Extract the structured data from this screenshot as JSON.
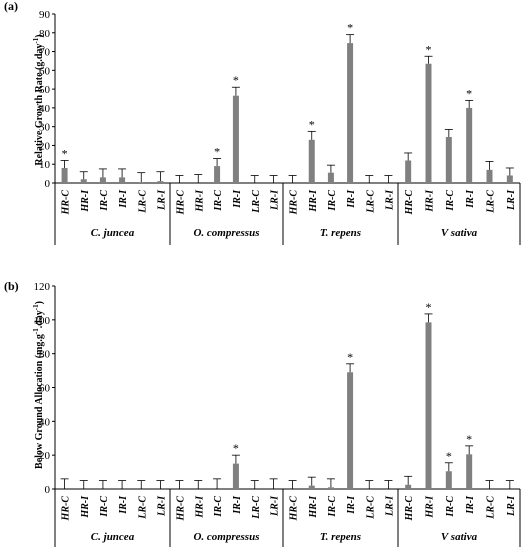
{
  "chart_data": [
    {
      "panel_label": "(a)",
      "type": "bar",
      "ylabel_main": "Relative Growth Rate (g.day",
      "ylabel_sup": "-1",
      "ylabel_end": ")",
      "ylim": [
        0,
        90
      ],
      "yticks": [
        0,
        10,
        20,
        30,
        40,
        50,
        60,
        70,
        80,
        90
      ],
      "grid": false,
      "categories": [
        "HR-C",
        "HR-I",
        "IR-C",
        "IR-I",
        "LR-C",
        "LR-I"
      ],
      "groups": [
        {
          "name": "C. juncea",
          "values": [
            8,
            2,
            3,
            3,
            0.5,
            1
          ],
          "errors": [
            4,
            4,
            4.5,
            4.5,
            5,
            5
          ],
          "sig": [
            true,
            false,
            false,
            false,
            false,
            false
          ]
        },
        {
          "name": "O. compressus",
          "values": [
            0,
            0,
            9,
            46.5,
            0,
            0
          ],
          "errors": [
            4,
            4.5,
            4,
            4.5,
            4,
            4
          ],
          "sig": [
            false,
            false,
            true,
            true,
            false,
            false
          ]
        },
        {
          "name": "T. repens",
          "values": [
            0,
            23,
            5.5,
            74.5,
            0,
            0
          ],
          "errors": [
            4,
            4.5,
            4,
            4.5,
            4,
            4
          ],
          "sig": [
            false,
            true,
            false,
            true,
            false,
            false
          ]
        },
        {
          "name": "V sativa",
          "values": [
            12,
            63.5,
            24.5,
            40,
            7,
            4
          ],
          "errors": [
            4,
            4,
            4,
            4,
            4.5,
            4
          ],
          "sig": [
            false,
            true,
            false,
            true,
            false,
            false
          ]
        }
      ],
      "sig_marker": "*"
    },
    {
      "panel_label": "(b)",
      "type": "bar",
      "ylabel_main": "Below Ground Allocation (mg.g",
      "ylabel_sup": "-1",
      "ylabel_mid": ".day",
      "ylabel_sup2": "-1",
      "ylabel_end": ")",
      "ylim": [
        0,
        120
      ],
      "yticks": [
        0,
        20,
        40,
        60,
        80,
        100,
        120
      ],
      "grid": false,
      "categories": [
        "HR-C",
        "HR-I",
        "IR-C",
        "IR-I",
        "LR-C",
        "LR-I"
      ],
      "groups": [
        {
          "name": "C. juncea",
          "values": [
            0,
            0,
            0,
            0,
            0,
            0
          ],
          "errors": [
            6,
            5,
            5,
            5,
            5,
            5
          ],
          "sig": [
            false,
            false,
            false,
            false,
            false,
            false
          ]
        },
        {
          "name": "O. compressus",
          "values": [
            0,
            0,
            0,
            15,
            0,
            0
          ],
          "errors": [
            5,
            5,
            6,
            5,
            5,
            6
          ],
          "sig": [
            false,
            false,
            false,
            true,
            false,
            false
          ]
        },
        {
          "name": "T. repens",
          "values": [
            0,
            2,
            1,
            69,
            0,
            0
          ],
          "errors": [
            5,
            5,
            5,
            5,
            5,
            5
          ],
          "sig": [
            false,
            false,
            false,
            true,
            false,
            false
          ]
        },
        {
          "name": "V sativa",
          "values": [
            2.5,
            98.5,
            10.5,
            20.5,
            0,
            0
          ],
          "errors": [
            5,
            5,
            5,
            5,
            5,
            5
          ],
          "sig": [
            false,
            true,
            true,
            true,
            false,
            false
          ]
        }
      ],
      "sig_marker": "*"
    }
  ]
}
